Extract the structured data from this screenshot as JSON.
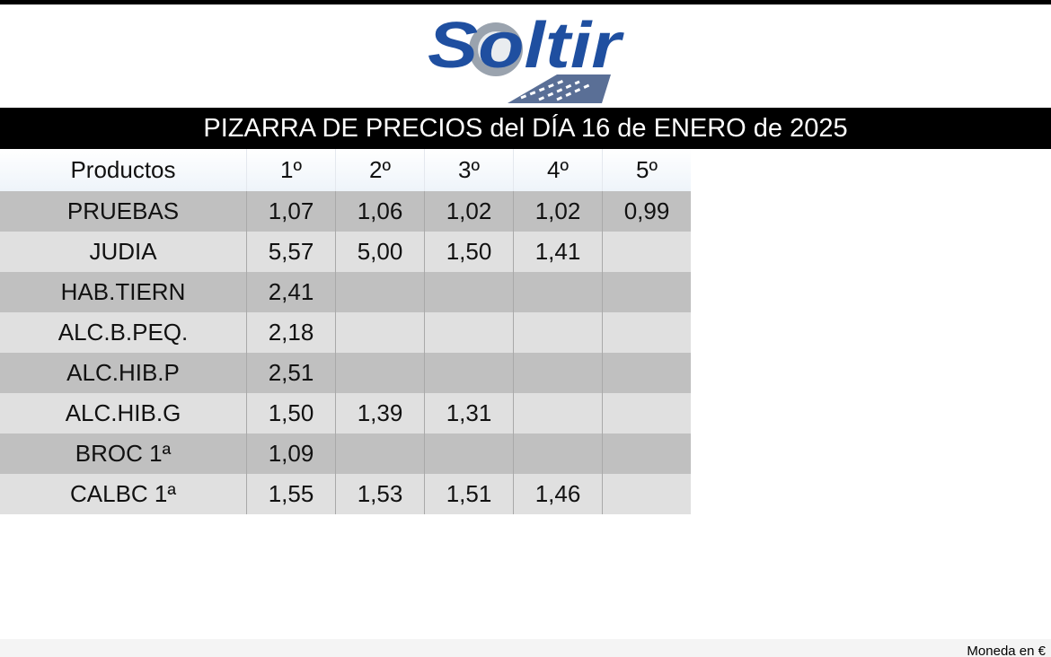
{
  "logo": "Soltir",
  "title": "PIZARRA DE PRECIOS del DÍA 16 de ENERO de 2025",
  "table": {
    "header": [
      "Productos",
      "1º",
      "2º",
      "3º",
      "4º",
      "5º"
    ],
    "rows": [
      [
        "PRUEBAS",
        "1,07",
        "1,06",
        "1,02",
        "1,02",
        "0,99"
      ],
      [
        "JUDIA",
        "5,57",
        "5,00",
        "1,50",
        "1,41"
      ],
      [
        "HAB.TIERN",
        "2,41"
      ],
      [
        "ALC.B.PEQ.",
        "2,18"
      ],
      [
        "ALC.HIB.P",
        "2,51"
      ],
      [
        "ALC.HIB.G",
        "1,50",
        "1,39",
        "1,31"
      ],
      [
        "BROC 1ª",
        "1,09"
      ],
      [
        "CALBC 1ª",
        "1,55",
        "1,53",
        "1,51",
        "1,46"
      ]
    ]
  },
  "footer": "Moneda en €"
}
